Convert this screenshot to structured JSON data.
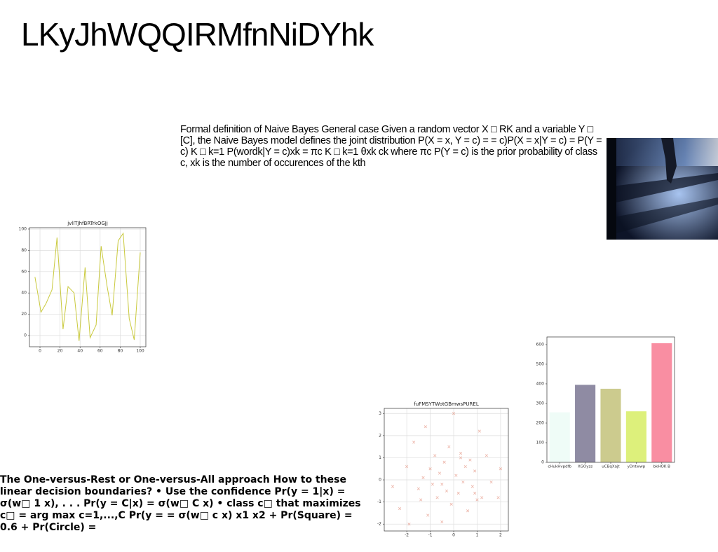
{
  "title": "LKyJhWQQIRMfnNiDYhk",
  "paragraph": "Formal definition of Naive Bayes General case Given a random vector X □ RK and a variable Y □ [C], the Naive Bayes model defines the joint distribution P(X = x, Y = c) = = c)P(X = x|Y = c) = P(Y = c) K □ k=1 P(wordk|Y = c)xk = πc K □ k=1 θxk ck where πc P(Y = c) is the prior probability of class c, xk is the number of occurences of the kth",
  "footer_text": "The One-versus-Rest or One-versus-All approach How to these linear decision boundaries? • Use the confidence Pr(y = 1|x) = σ(w□ 1 x), . . . Pr(y = C|x) = σ(w□ C x) • class c□ that maximizes c□ = arg max c=1,...,C Pr(y = = σ(w□ c x) x1 x2 + Pr(Square) = 0.6 + Pr(Circle) =",
  "chart_data": [
    {
      "type": "line",
      "title": "jvlITJhfBRTrkOGJj",
      "color": "#c9c93c",
      "grid": true,
      "series": [
        {
          "x": [
            -5,
            1,
            6,
            12,
            17,
            23,
            28,
            34,
            39,
            45,
            50,
            56,
            61,
            67,
            72,
            78,
            83,
            89,
            94,
            100
          ],
          "values": [
            55,
            22,
            30,
            43,
            92,
            6,
            46,
            40,
            -5,
            64,
            -2,
            10,
            84,
            46,
            19,
            89,
            96,
            16,
            -4,
            78
          ]
        }
      ],
      "xlim": [
        -10.5,
        105.6
      ],
      "ylim": [
        -10.5,
        101.3
      ],
      "xticks": [
        0,
        20,
        40,
        60,
        80,
        100
      ],
      "yticks": [
        0,
        20,
        40,
        60,
        80,
        100
      ]
    },
    {
      "type": "scatter",
      "title": "fuFMSYTWotGBmwsPUREL",
      "color": "#e8a090",
      "grid": true,
      "x": [
        -2.6,
        -2.3,
        -2.0,
        -1.9,
        -1.7,
        -1.5,
        -1.4,
        -1.2,
        -1.1,
        -1.0,
        -0.9,
        -0.8,
        -0.7,
        -0.6,
        -0.5,
        -0.4,
        -0.3,
        -0.2,
        -0.1,
        0.0,
        0.1,
        0.2,
        0.3,
        0.4,
        0.5,
        0.6,
        0.7,
        0.8,
        0.9,
        1.0,
        1.1,
        1.2,
        1.4,
        1.6,
        1.9,
        2.0,
        -0.5,
        0.3,
        -1.3,
        0.9
      ],
      "values": [
        -0.3,
        -1.3,
        0.6,
        -2.0,
        1.7,
        -0.4,
        -0.9,
        2.4,
        -1.6,
        0.5,
        -0.2,
        1.1,
        -0.8,
        0.3,
        -1.9,
        0.8,
        -0.5,
        1.5,
        -1.1,
        3.0,
        0.2,
        -0.6,
        1.0,
        -0.1,
        0.6,
        -1.4,
        0.9,
        -0.3,
        0.4,
        -0.9,
        2.2,
        -0.8,
        1.1,
        -0.1,
        -0.8,
        0.5,
        -0.2,
        1.2,
        0.1,
        -0.6
      ],
      "xlim": [
        -2.96,
        2.33
      ],
      "ylim": [
        -2.31,
        3.23
      ],
      "xticks": [
        -2,
        -1,
        0,
        1,
        2
      ],
      "yticks": [
        -2,
        -1,
        0,
        1,
        2,
        3
      ]
    },
    {
      "type": "bar",
      "grid": false,
      "categories": [
        "cHukHvpdfb",
        "XGOyzs",
        "uCBqXajt",
        "yDntwwp",
        "bkHOK B"
      ],
      "values": [
        255,
        395,
        375,
        260,
        607
      ],
      "colors": [
        "#effcf7",
        "#8f8ba3",
        "#cccb8e",
        "#ddf07b",
        "#f98ea2"
      ],
      "ylim": [
        0,
        639
      ],
      "yticks": [
        0,
        100,
        200,
        300,
        400,
        500,
        600
      ]
    }
  ]
}
